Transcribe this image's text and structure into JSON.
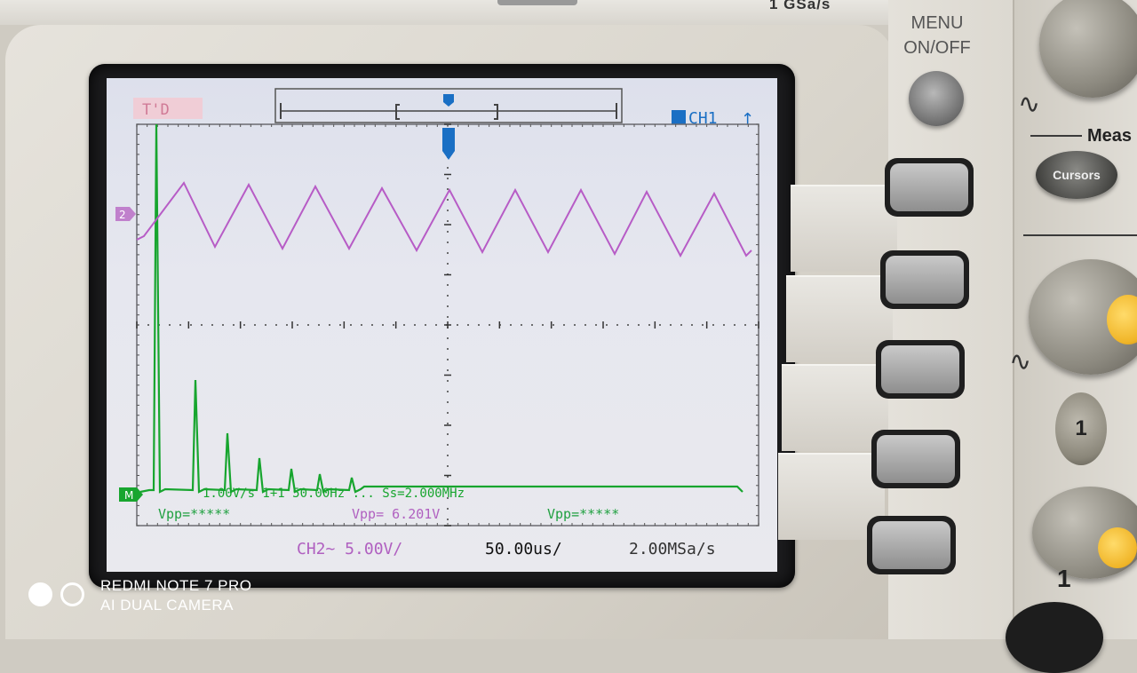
{
  "device": {
    "top_label": "1 GSa/s",
    "menu": {
      "line1": "MENU",
      "line2": "ON/OFF"
    },
    "measure_label": "Meas",
    "cursors_label": "Cursors",
    "channel_button_label": "1",
    "channel_knob_label": "1"
  },
  "scope": {
    "trigger_status": "T'D",
    "trigger_channel": "CH1",
    "trigger_edge_icon": "rising-edge-icon",
    "ch2_marker": "2",
    "math_marker": "M",
    "fft_overlay": "1.00V/s  1+1 50.00Hz  ... Ss=2.000MHz",
    "measurements": [
      {
        "label": "Vpp=*****",
        "color": "#20a040"
      },
      {
        "label": "Vpp= 6.201V",
        "color": "#b060c0"
      },
      {
        "label": "Vpp=*****",
        "color": "#20a040"
      }
    ],
    "status_bar": {
      "ch2_scale": "CH2~ 5.00V/",
      "timebase": "50.00us/",
      "sample_rate": "2.00MSa/s"
    },
    "colors": {
      "ch2": "#b75cc6",
      "math": "#17a52e",
      "trigger": "#1a6fc4",
      "screen_bg": "#e6e7ef"
    }
  },
  "watermark": {
    "line1": "REDMI NOTE 7 PRO",
    "line2": "AI DUAL CAMERA"
  }
}
